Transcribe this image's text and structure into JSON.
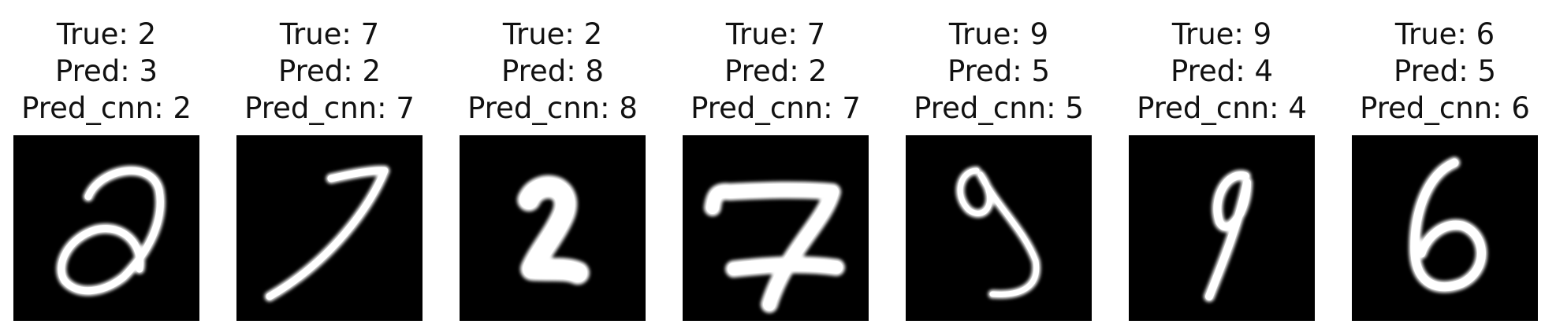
{
  "panels": [
    {
      "true_label": "True: 2",
      "pred_label": "Pred: 3",
      "pred_cnn_label": "Pred_cnn: 2",
      "image": "handwritten-digit-2-icon"
    },
    {
      "true_label": "True: 7",
      "pred_label": "Pred: 2",
      "pred_cnn_label": "Pred_cnn: 7",
      "image": "handwritten-digit-7-icon"
    },
    {
      "true_label": "True: 2",
      "pred_label": "Pred: 8",
      "pred_cnn_label": "Pred_cnn: 8",
      "image": "handwritten-digit-2-icon"
    },
    {
      "true_label": "True: 7",
      "pred_label": "Pred: 2",
      "pred_cnn_label": "Pred_cnn: 7",
      "image": "handwritten-digit-7-icon"
    },
    {
      "true_label": "True: 9",
      "pred_label": "Pred: 5",
      "pred_cnn_label": "Pred_cnn: 5",
      "image": "handwritten-digit-9-icon"
    },
    {
      "true_label": "True: 9",
      "pred_label": "Pred: 4",
      "pred_cnn_label": "Pred_cnn: 4",
      "image": "handwritten-digit-9-icon"
    },
    {
      "true_label": "True: 6",
      "pred_label": "Pred: 5",
      "pred_cnn_label": "Pred_cnn: 6",
      "image": "handwritten-digit-6-icon"
    }
  ],
  "colors": {
    "background": "#ffffff",
    "image_background": "#000000",
    "stroke": "#ffffff",
    "text": "#111111"
  }
}
